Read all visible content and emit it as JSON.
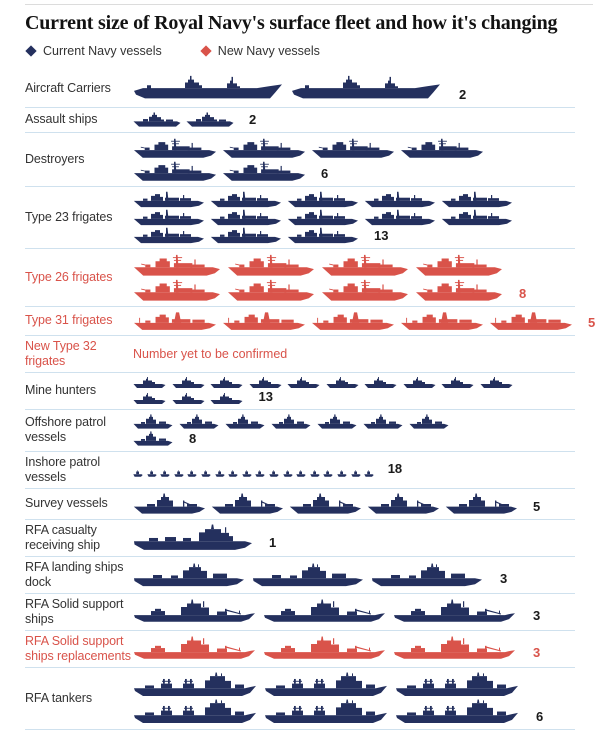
{
  "title": "Current size of Royal Navy's surface fleet and how it's changing",
  "legend": [
    {
      "label": "Current Navy vessels",
      "color": "#24305e"
    },
    {
      "label": "New Navy vessels",
      "color": "#d9534a"
    }
  ],
  "colors": {
    "current": "#24305e",
    "new": "#d9534a",
    "divider": "#cfe1ee",
    "label": "#333333",
    "count": "#1a1a1a",
    "title": "#121212"
  },
  "chart_data": {
    "type": "pictogram",
    "unit": "vessels",
    "rows": [
      {
        "label": "Aircraft Carriers",
        "status": "current",
        "count": "2",
        "ship": "carrier",
        "lines": [
          2
        ]
      },
      {
        "label": "Assault ships",
        "status": "current",
        "count": "2",
        "ship": "assault",
        "lines": [
          2
        ]
      },
      {
        "label": "Destroyers",
        "status": "current",
        "count": "6",
        "ship": "destroyer",
        "lines": [
          4,
          2
        ]
      },
      {
        "label": "Type 23 frigates",
        "status": "current",
        "count": "13",
        "ship": "frigate23",
        "lines": [
          5,
          5,
          3
        ]
      },
      {
        "label": "Type 26 frigates",
        "status": "new",
        "count": "8",
        "ship": "frigate26",
        "lines": [
          4,
          4
        ]
      },
      {
        "label": "Type 31 frigates",
        "status": "new",
        "count": "5",
        "ship": "frigate31",
        "lines": [
          5
        ]
      },
      {
        "label": "New Type 32 frigates",
        "status": "new",
        "note": "Number yet to be confirmed"
      },
      {
        "label": "Mine hunters",
        "status": "current",
        "count": "13",
        "ship": "minehunter",
        "lines": [
          10,
          3
        ]
      },
      {
        "label": "Offshore patrol vessels",
        "status": "current",
        "count": "8",
        "ship": "opv",
        "lines": [
          7,
          1
        ]
      },
      {
        "label": "Inshore patrol vessels",
        "status": "current",
        "count": "18",
        "ship": "inshore",
        "lines": [
          18
        ]
      },
      {
        "label": "Survey vessels",
        "status": "current",
        "count": "5",
        "ship": "survey",
        "lines": [
          5
        ]
      },
      {
        "label": "RFA casualty receiving ship",
        "status": "current",
        "count": "1",
        "ship": "casualty",
        "lines": [
          1
        ]
      },
      {
        "label": "RFA landing ships dock",
        "status": "current",
        "count": "3",
        "ship": "landing",
        "lines": [
          3
        ]
      },
      {
        "label": "RFA Solid support ships",
        "status": "current",
        "count": "3",
        "ship": "support",
        "lines": [
          3
        ]
      },
      {
        "label": "RFA Solid support ships replacements",
        "status": "new",
        "count": "3",
        "ship": "support",
        "lines": [
          3
        ]
      },
      {
        "label": "RFA tankers",
        "status": "current",
        "count": "6",
        "ship": "tanker",
        "lines": [
          3,
          3
        ]
      }
    ]
  }
}
